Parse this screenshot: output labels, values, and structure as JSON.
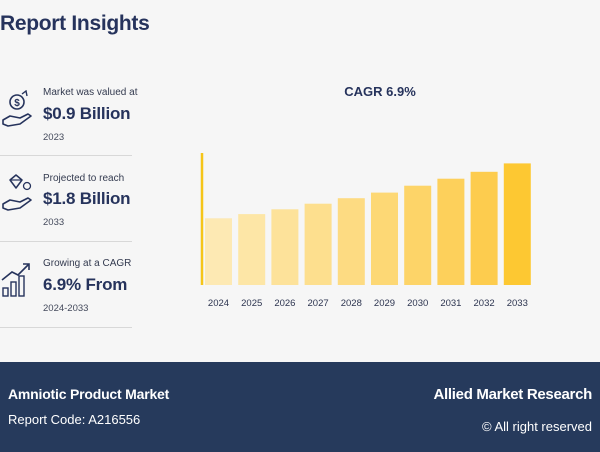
{
  "header": {
    "title": "Report Insights"
  },
  "stats": [
    {
      "icon": "money-hand-icon",
      "label": "Market was valued at",
      "value": "$0.9 Billion",
      "year": "2023"
    },
    {
      "icon": "diamond-hand-icon",
      "label": "Projected to reach",
      "value": "$1.8 Billion",
      "year": "2033"
    },
    {
      "icon": "growth-chart-icon",
      "label": "Growing at a CAGR",
      "value": "6.9% From",
      "year": "2024-2033"
    }
  ],
  "chart_data": {
    "type": "bar",
    "title": "CAGR 6.9%",
    "categories": [
      "2024",
      "2025",
      "2026",
      "2027",
      "2028",
      "2029",
      "2030",
      "2031",
      "2032",
      "2033"
    ],
    "values": [
      0.96,
      1.02,
      1.09,
      1.17,
      1.25,
      1.33,
      1.43,
      1.53,
      1.63,
      1.75
    ],
    "ylim": [
      0,
      1.9
    ],
    "xlabel": "",
    "ylabel": "",
    "grid": false,
    "colors": [
      "#fde9b3",
      "#fde6a6",
      "#fde29a",
      "#fddf8e",
      "#fddb82",
      "#fdd875",
      "#fdd468",
      "#fdd05b",
      "#fdcc4e",
      "#fdc832"
    ],
    "axis_color": "#f5c518"
  },
  "footer": {
    "product": "Amniotic Product Market",
    "report_code": "Report Code: A216556",
    "brand": "Allied Market Research",
    "rights": "© All right reserved"
  }
}
